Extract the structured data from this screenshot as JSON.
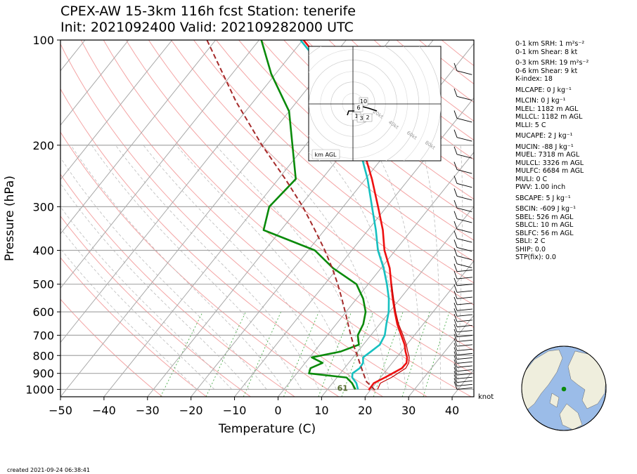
{
  "header": {
    "title_line1": "CPEX-AW 15-3km  116h fcst  Station: tenerife",
    "title_line2": "Init: 2021092400  Valid: 202109282000 UTC"
  },
  "chart_data": {
    "type": "skew-t",
    "xlabel": "Temperature (C)",
    "ylabel": "Pressure (hPa)",
    "xlim": [
      -50,
      45
    ],
    "ylim": [
      1050,
      100
    ],
    "x_ticks": [
      "−50",
      "−40",
      "−30",
      "−20",
      "−10",
      "0",
      "10",
      "20",
      "30",
      "40"
    ],
    "y_ticks": [
      {
        "p": 100,
        "label": "100"
      },
      {
        "p": 200,
        "label": "200"
      },
      {
        "p": 300,
        "label": "300"
      },
      {
        "p": 400,
        "label": "400"
      },
      {
        "p": 500,
        "label": "500"
      },
      {
        "p": 600,
        "label": "600"
      },
      {
        "p": 700,
        "label": "700"
      },
      {
        "p": 800,
        "label": "800"
      },
      {
        "p": 900,
        "label": "900"
      },
      {
        "p": 1000,
        "label": "1000"
      }
    ],
    "series": [
      {
        "key": "temperature",
        "color": "#ee1111",
        "points": [
          [
            1005,
            19.6
          ],
          [
            960,
            19.5
          ],
          [
            925,
            21.0
          ],
          [
            900,
            22.0
          ],
          [
            870,
            23.2
          ],
          [
            840,
            23.3
          ],
          [
            810,
            22.4
          ],
          [
            780,
            21.0
          ],
          [
            745,
            19.5
          ],
          [
            700,
            17.0
          ],
          [
            650,
            14.0
          ],
          [
            600,
            11.2
          ],
          [
            550,
            8.3
          ],
          [
            500,
            5.3
          ],
          [
            450,
            2.0
          ],
          [
            400,
            -2.5
          ],
          [
            350,
            -6.6
          ],
          [
            300,
            -12.0
          ],
          [
            250,
            -18.5
          ],
          [
            200,
            -27.0
          ],
          [
            160,
            -35.3
          ],
          [
            125,
            -47.3
          ],
          [
            100,
            -59.8
          ]
        ]
      },
      {
        "key": "virtual_temperature",
        "color": "#c00000",
        "points": [
          [
            1000,
            21.5
          ],
          [
            960,
            21.0
          ],
          [
            925,
            22.5
          ],
          [
            900,
            23.2
          ],
          [
            870,
            24.1
          ],
          [
            840,
            23.8
          ],
          [
            810,
            22.9
          ],
          [
            780,
            21.5
          ],
          [
            745,
            19.9
          ],
          [
            700,
            17.4
          ],
          [
            650,
            14.3
          ],
          [
            600,
            11.4
          ],
          [
            550,
            8.5
          ],
          [
            500,
            5.4
          ]
        ]
      },
      {
        "key": "wet_bulb",
        "color": "#16c0c0",
        "points": [
          [
            1000,
            17.0
          ],
          [
            960,
            15.5
          ],
          [
            925,
            13.5
          ],
          [
            900,
            12.8
          ],
          [
            870,
            13.5
          ],
          [
            840,
            13.3
          ],
          [
            810,
            12.3
          ],
          [
            780,
            13.0
          ],
          [
            745,
            13.8
          ],
          [
            700,
            13.2
          ],
          [
            650,
            11.5
          ],
          [
            600,
            9.8
          ],
          [
            550,
            7.4
          ],
          [
            500,
            4.3
          ],
          [
            450,
            0.6
          ],
          [
            400,
            -4.0
          ],
          [
            350,
            -8.2
          ],
          [
            300,
            -13.4
          ],
          [
            250,
            -19.5
          ],
          [
            200,
            -27.8
          ],
          [
            160,
            -36.0
          ],
          [
            125,
            -48.0
          ],
          [
            100,
            -60.5
          ]
        ]
      },
      {
        "key": "dewpoint",
        "color": "#0a8a0a",
        "points": [
          [
            1000,
            16.4
          ],
          [
            960,
            14.5
          ],
          [
            925,
            12.2
          ],
          [
            900,
            2.8
          ],
          [
            870,
            2.2
          ],
          [
            840,
            4.0
          ],
          [
            810,
            0.5
          ],
          [
            780,
            6.0
          ],
          [
            745,
            9.0
          ],
          [
            700,
            7.0
          ],
          [
            650,
            6.2
          ],
          [
            600,
            4.5
          ],
          [
            550,
            1.5
          ],
          [
            500,
            -2.7
          ],
          [
            450,
            -11.0
          ],
          [
            400,
            -18.5
          ],
          [
            350,
            -34.0
          ],
          [
            300,
            -37.0
          ],
          [
            250,
            -36.0
          ],
          [
            200,
            -43.0
          ],
          [
            160,
            -50.0
          ],
          [
            125,
            -61.0
          ],
          [
            100,
            -69.5
          ]
        ]
      },
      {
        "key": "parcel",
        "color": "#a52a2a",
        "dashed": true,
        "points": [
          [
            1005,
            21.0
          ],
          [
            980,
            19.5
          ],
          [
            950,
            17.5
          ],
          [
            900,
            15.3
          ],
          [
            850,
            13.0
          ],
          [
            800,
            10.6
          ],
          [
            750,
            8.0
          ],
          [
            700,
            5.4
          ],
          [
            650,
            2.7
          ],
          [
            600,
            -0.2
          ],
          [
            550,
            -3.4
          ],
          [
            500,
            -7.0
          ],
          [
            450,
            -11.2
          ],
          [
            400,
            -16.2
          ],
          [
            350,
            -22.2
          ],
          [
            300,
            -29.3
          ],
          [
            250,
            -38.4
          ],
          [
            200,
            -50.0
          ],
          [
            150,
            -64.0
          ],
          [
            100,
            -82.0
          ]
        ]
      }
    ],
    "annotation": {
      "text": "61",
      "p": 1000,
      "t": 17.5,
      "color": "#556b2f"
    },
    "hodograph": {
      "range_label": "km AGL",
      "ring_labels": [
        "20kt",
        "40kt",
        "60kt",
        "80kt"
      ],
      "height_labels": [
        "10",
        "6",
        "1",
        "3",
        "2"
      ]
    },
    "wind_unit": "knot"
  },
  "stats": [
    {
      "text": "0-1 km SRH: 1 m²s⁻²"
    },
    {
      "text": "0-1 km Shear: 8 kt"
    },
    {
      "text": "0-3 km SRH: 19 m²s⁻²"
    },
    {
      "text": "0-6 km Shear: 9 kt"
    },
    {
      "text": "K-index: 18"
    },
    {
      "text": "MLCAPE: 0 J kg⁻¹"
    },
    {
      "text": "MLCIN: 0 J kg⁻¹"
    },
    {
      "text": "MLEL: 1182 m AGL"
    },
    {
      "text": "MLLCL: 1182 m AGL"
    },
    {
      "text": "MLLI: 5 C"
    },
    {
      "text": "MUCAPE: 2 J kg⁻¹"
    },
    {
      "text": "MUCIN: -88 J kg⁻¹"
    },
    {
      "text": "MUEL: 7318 m AGL"
    },
    {
      "text": "MULCL: 3326 m AGL"
    },
    {
      "text": "MULFC: 6684 m AGL"
    },
    {
      "text": "MULI: 0 C"
    },
    {
      "text": "PWV: 1.00 inch"
    },
    {
      "text": "SBCAPE: 5 J kg⁻¹"
    },
    {
      "text": "SBCIN: -609 J kg⁻¹"
    },
    {
      "text": "SBEL: 526 m AGL"
    },
    {
      "text": "SBLCL: 10 m AGL"
    },
    {
      "text": "SBLFC: 56 m AGL"
    },
    {
      "text": "SBLI: 2 C"
    },
    {
      "text": "SHIP: 0.0"
    },
    {
      "text": "STP(fix): 0.0"
    }
  ],
  "footer": {
    "created": "created 2021-09-24 06:38:41"
  },
  "colors": {
    "ocean": "#9bbce8",
    "land": "#efeedd",
    "station": "#0a8a0a"
  }
}
